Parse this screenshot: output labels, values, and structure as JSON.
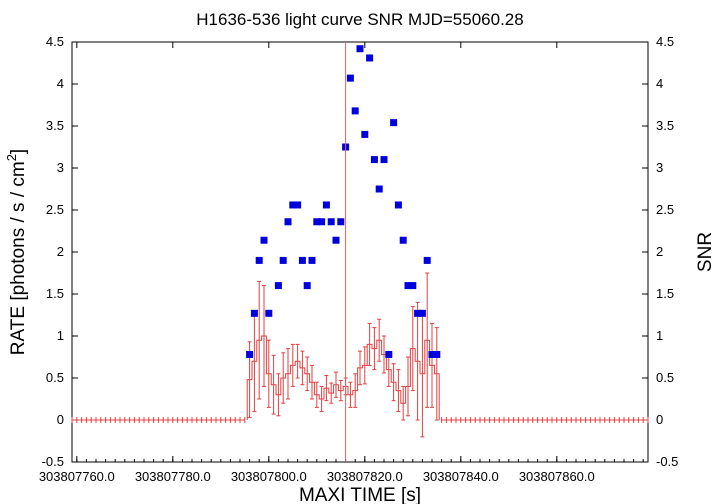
{
  "chart_data": {
    "type": "scatter",
    "title": "H1636-536 light curve  SNR MJD=55060.28",
    "xlabel": "MAXI TIME [s]",
    "ylabel_left": "RATE [photons / s / cm",
    "ylabel_left_sup": "2",
    "ylabel_left_end": "]",
    "ylabel_right": "SNR",
    "xlim": [
      303807759.0,
      303807879.0
    ],
    "ylim": [
      -0.5,
      4.5
    ],
    "x_ticks": [
      303807760.0,
      303807780.0,
      303807800.0,
      303807820.0,
      303807840.0,
      303807860.0
    ],
    "x_tick_labels": [
      "303807760.0",
      "303807780.0",
      "303807800.0",
      "303807820.0",
      "303807840.0",
      "303807860.0"
    ],
    "y_ticks": [
      -0.5,
      0,
      0.5,
      1,
      1.5,
      2,
      2.5,
      3,
      3.5,
      4,
      4.5
    ],
    "y_tick_labels": [
      "-0.5",
      "0",
      "0.5",
      "1",
      "1.5",
      "2",
      "2.5",
      "3",
      "3.5",
      "4",
      "4.5"
    ],
    "reference_line_x": 303807816.0,
    "colors": {
      "rate": "#e04040",
      "snr": "#0000dd",
      "reference": "#e06060",
      "frame": "#000000"
    },
    "series": [
      {
        "name": "RATE",
        "style": "histogram-errorbars",
        "x": [
          303807796.0,
          303807797.0,
          303807798.0,
          303807799.0,
          303807800.0,
          303807801.0,
          303807802.0,
          303807803.0,
          303807804.0,
          303807805.0,
          303807806.0,
          303807807.0,
          303807808.0,
          303807809.0,
          303807810.0,
          303807811.0,
          303807812.0,
          303807813.0,
          303807814.0,
          303807815.0,
          303807816.0,
          303807817.0,
          303807818.0,
          303807819.0,
          303807820.0,
          303807821.0,
          303807822.0,
          303807823.0,
          303807824.0,
          303807825.0,
          303807826.0,
          303807827.0,
          303807828.0,
          303807829.0,
          303807830.0,
          303807831.0,
          303807832.0,
          303807833.0,
          303807834.0,
          303807835.0
        ],
        "y": [
          0.48,
          0.7,
          0.95,
          1.0,
          0.55,
          0.42,
          0.3,
          0.5,
          0.55,
          0.65,
          0.7,
          0.62,
          0.55,
          0.45,
          0.3,
          0.25,
          0.38,
          0.32,
          0.42,
          0.35,
          0.4,
          0.3,
          0.35,
          0.62,
          0.65,
          0.9,
          0.85,
          0.95,
          0.78,
          0.6,
          0.45,
          0.35,
          0.2,
          0.4,
          0.85,
          0.7,
          0.55,
          0.95,
          0.65,
          0.55
        ],
        "err": [
          0.45,
          0.6,
          0.7,
          0.6,
          0.4,
          0.35,
          0.25,
          0.3,
          0.3,
          0.25,
          0.2,
          0.2,
          0.2,
          0.2,
          0.15,
          0.15,
          0.15,
          0.12,
          0.15,
          0.12,
          0.1,
          0.15,
          0.2,
          0.2,
          0.22,
          0.25,
          0.25,
          0.25,
          0.22,
          0.2,
          0.22,
          0.25,
          0.2,
          0.35,
          0.5,
          0.7,
          0.75,
          0.8,
          0.5,
          0.55
        ],
        "zero_range": [
          [
            303807759.0,
            303807795.0
          ],
          [
            303807836.0,
            303807879.0
          ]
        ]
      },
      {
        "name": "SNR",
        "style": "squares",
        "x": [
          303807796.0,
          303807797.0,
          303807798.0,
          303807799.0,
          303807800.0,
          303807802.0,
          303807803.0,
          303807804.0,
          303807805.0,
          303807806.0,
          303807807.0,
          303807808.0,
          303807809.0,
          303807810.0,
          303807811.0,
          303807812.0,
          303807813.0,
          303807814.0,
          303807815.0,
          303807816.0,
          303807817.0,
          303807818.0,
          303807819.0,
          303807820.0,
          303807821.0,
          303807822.0,
          303807823.0,
          303807824.0,
          303807825.0,
          303807826.0,
          303807827.0,
          303807828.0,
          303807829.0,
          303807830.0,
          303807831.0,
          303807832.0,
          303807833.0,
          303807834.0,
          303807835.0
        ],
        "y": [
          0.78,
          1.27,
          1.9,
          2.14,
          1.27,
          1.6,
          1.9,
          2.36,
          2.56,
          2.56,
          1.9,
          1.6,
          1.9,
          2.36,
          2.36,
          2.56,
          2.36,
          2.14,
          2.36,
          3.25,
          4.07,
          3.68,
          4.42,
          3.4,
          4.31,
          3.1,
          2.75,
          3.1,
          0.78,
          3.54,
          2.56,
          2.14,
          1.6,
          1.6,
          1.27,
          1.27,
          1.9,
          0.78,
          0.78
        ]
      }
    ]
  }
}
